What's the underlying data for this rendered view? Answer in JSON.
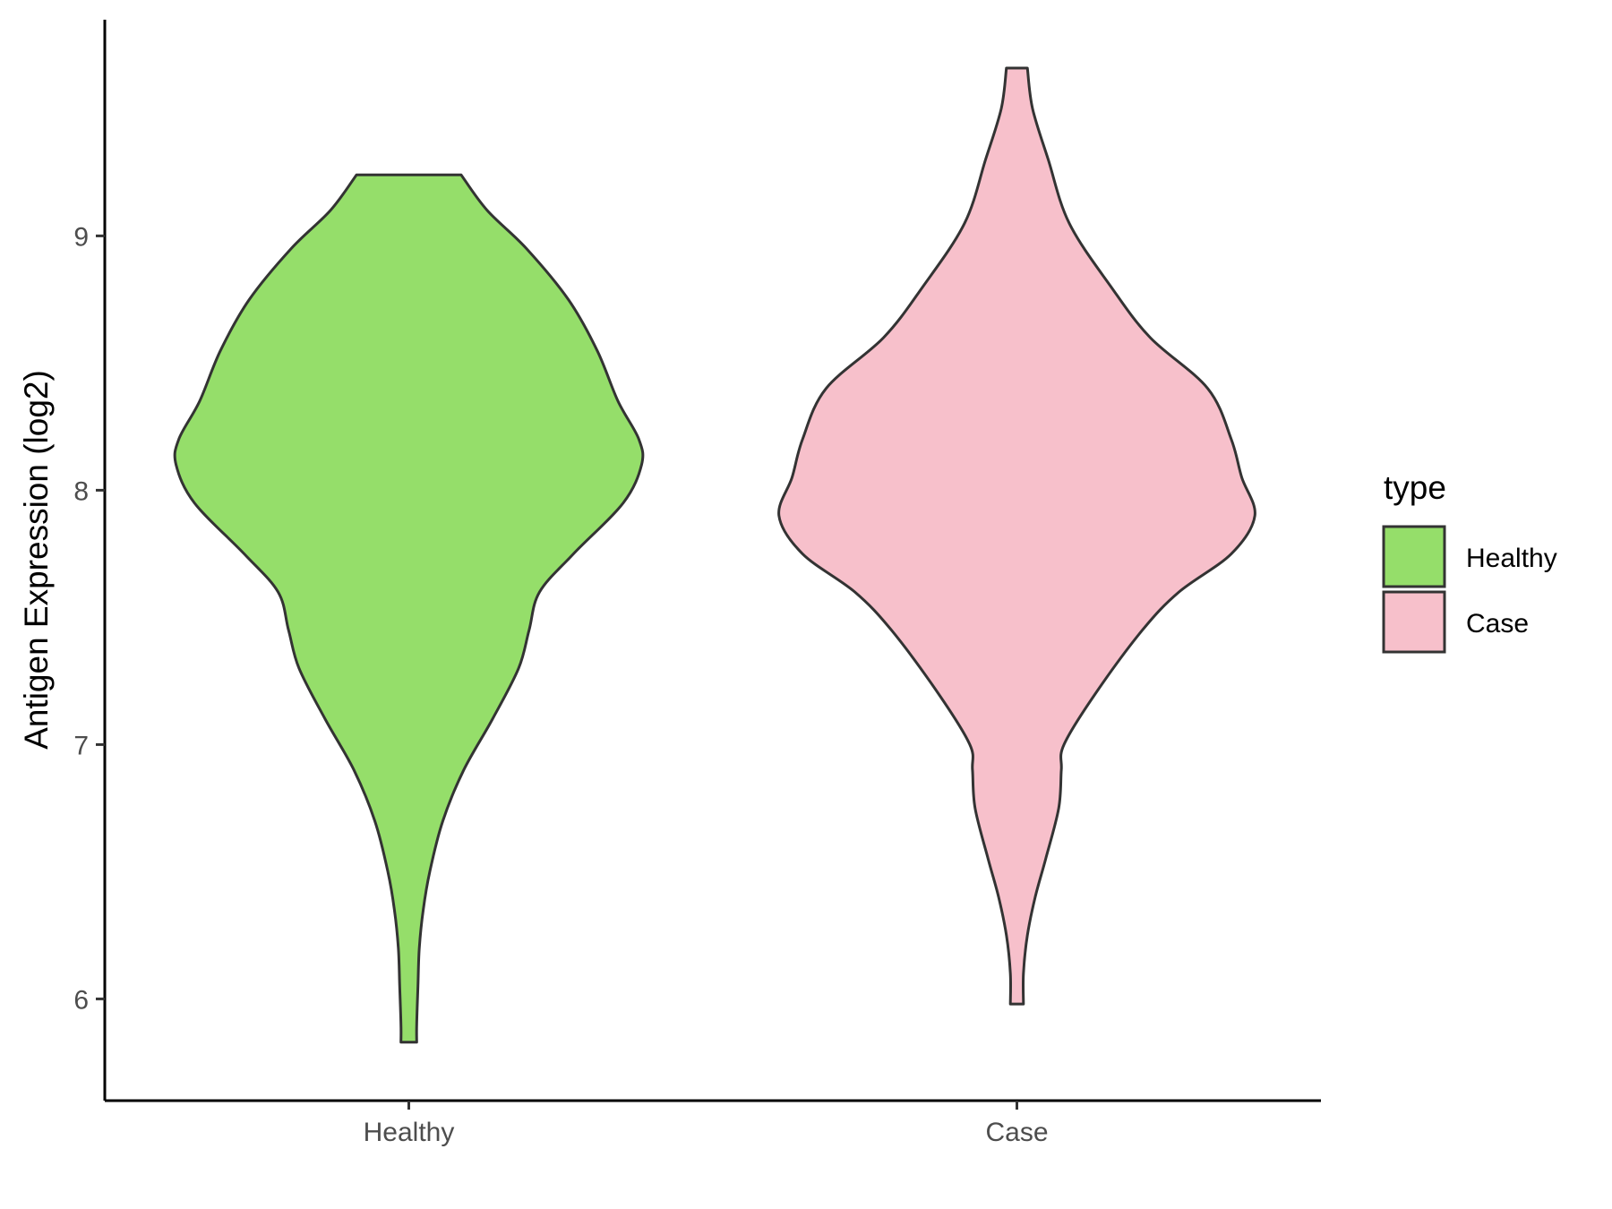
{
  "chart_data": {
    "type": "violin",
    "categories": [
      "Healthy",
      "Case"
    ],
    "ylabel": "Antigen Expression (log2)",
    "xlabel": "",
    "ylim": [
      5.6,
      9.85
    ],
    "yticks": [
      6,
      7,
      8,
      9
    ],
    "legend": {
      "title": "type",
      "position": "right"
    },
    "grid": false,
    "series": [
      {
        "name": "Healthy",
        "color": "#95de6a",
        "min": 5.83,
        "max": 9.24,
        "density": [
          [
            5.83,
            0.03
          ],
          [
            5.9,
            0.03
          ],
          [
            6.05,
            0.035
          ],
          [
            6.2,
            0.04
          ],
          [
            6.35,
            0.055
          ],
          [
            6.5,
            0.08
          ],
          [
            6.7,
            0.13
          ],
          [
            6.9,
            0.21
          ],
          [
            7.1,
            0.32
          ],
          [
            7.3,
            0.42
          ],
          [
            7.45,
            0.46
          ],
          [
            7.6,
            0.5
          ],
          [
            7.75,
            0.63
          ],
          [
            7.95,
            0.82
          ],
          [
            8.1,
            0.89
          ],
          [
            8.2,
            0.88
          ],
          [
            8.35,
            0.8
          ],
          [
            8.55,
            0.72
          ],
          [
            8.75,
            0.61
          ],
          [
            8.95,
            0.45
          ],
          [
            9.1,
            0.3
          ],
          [
            9.24,
            0.2
          ]
        ]
      },
      {
        "name": "Case",
        "color": "#f7c0cb",
        "min": 5.98,
        "max": 9.66,
        "density": [
          [
            5.98,
            0.025
          ],
          [
            6.1,
            0.025
          ],
          [
            6.25,
            0.04
          ],
          [
            6.4,
            0.07
          ],
          [
            6.55,
            0.11
          ],
          [
            6.75,
            0.16
          ],
          [
            6.9,
            0.17
          ],
          [
            7.0,
            0.18
          ],
          [
            7.2,
            0.3
          ],
          [
            7.45,
            0.48
          ],
          [
            7.6,
            0.62
          ],
          [
            7.75,
            0.82
          ],
          [
            7.9,
            0.91
          ],
          [
            8.05,
            0.86
          ],
          [
            8.2,
            0.82
          ],
          [
            8.4,
            0.73
          ],
          [
            8.6,
            0.51
          ],
          [
            8.8,
            0.36
          ],
          [
            9.05,
            0.2
          ],
          [
            9.3,
            0.12
          ],
          [
            9.5,
            0.06
          ],
          [
            9.66,
            0.04
          ]
        ]
      }
    ]
  }
}
